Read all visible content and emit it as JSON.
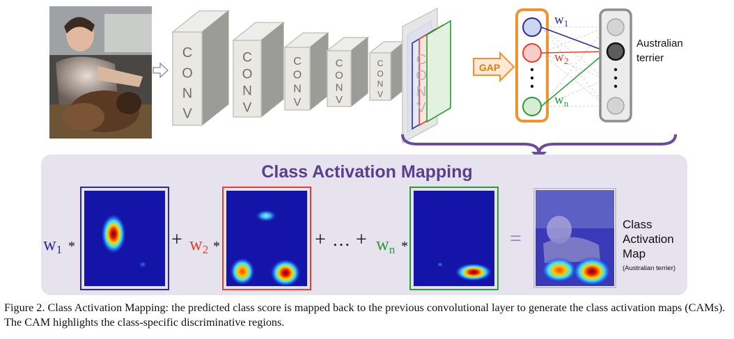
{
  "conv_label": [
    "C",
    "O",
    "N",
    "V"
  ],
  "gap_label": "GAP",
  "weights": {
    "w1": {
      "base": "w",
      "sub": "1"
    },
    "w2": {
      "base": "w",
      "sub": "2"
    },
    "wn": {
      "base": "w",
      "sub": "n"
    }
  },
  "output_label": [
    "Australian",
    "terrier"
  ],
  "cam_title": "Class Activation Mapping",
  "equation": {
    "star": "*",
    "plus": "+",
    "ellipsis": "…",
    "equals": "="
  },
  "result_label": [
    "Class",
    "Activation",
    "Map"
  ],
  "result_sublabel": "(Australian terrier)",
  "caption": "Figure 2. Class Activation Mapping: the predicted class score is mapped back to the previous convolutional layer to generate the class activation maps (CAMs). The CAM highlights the class-specific discriminative regions.",
  "colors": {
    "blue": "#2b2c9a",
    "red": "#e8402a",
    "green": "#2a9a3a",
    "purple": "#5b3f8c",
    "gap_orange": "#f0922e",
    "panel": "#e6e3ee",
    "heat_bg": "#1414a8"
  }
}
